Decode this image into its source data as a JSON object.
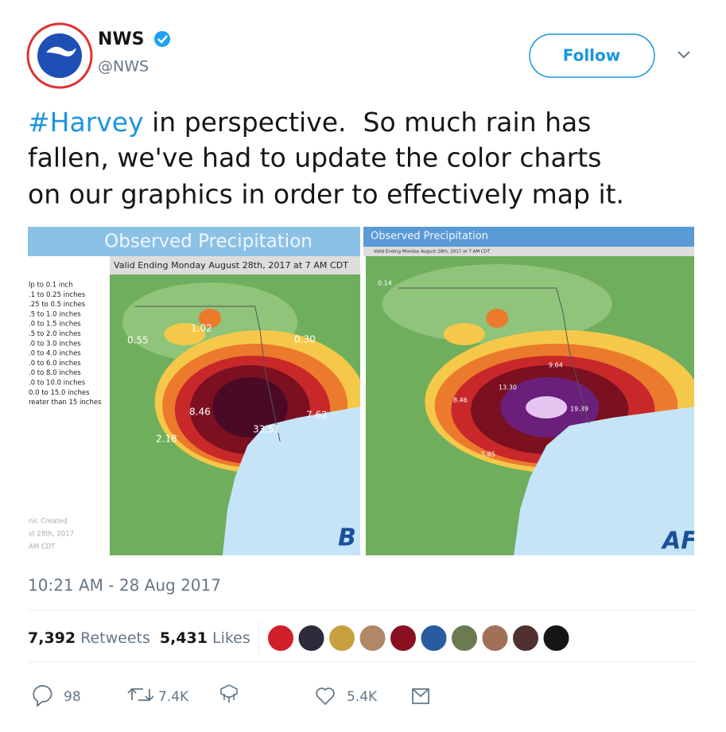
{
  "header": {
    "name": "NWS",
    "handle": "@NWS",
    "follow": "Follow"
  },
  "tweet": {
    "hashtag": "#Harvey",
    "lines": [
      " in perspective.  So much rain has",
      "fallen, we've had to update the color charts",
      "on our graphics in order to effectively map it."
    ]
  },
  "images": [
    {
      "title": "Observed Precipitation",
      "subtitle": "Valid Ending Monday August 28th, 2017 at 7 AM CDT",
      "legend": [
        "lp to 0.1 inch",
        ".1 to 0.25 inches",
        ".25 to 0.5 inches",
        ".5 to 1.0 inches",
        ".0 to 1.5 inches",
        ".5 to 2.0 inches",
        ".0 to 3.0 inches",
        ".0 to 4.0 inches",
        ".0 to 6.0 inches",
        ".0 to 8.0 inches",
        ".0 to 10.0 inches",
        "0.0 to 15.0 inches",
        "reater than 15 inches"
      ],
      "labels": [
        "8.46",
        "33.51",
        "7.62",
        "2.18",
        "1.02",
        "0.55",
        "0.30"
      ],
      "footer": [
        "nic Created",
        "st 28th, 2017",
        "AM CDT"
      ],
      "tag": "B"
    },
    {
      "title": "Observed Precipitation",
      "subtitle": "Valid Ending Monday August 28th, 2017 at 7 AM CDT",
      "labels": [
        "13.30",
        "9.64",
        "8.46",
        "19.39",
        "0.14",
        "5.85"
      ],
      "tag": "AF"
    }
  ],
  "timestamp": "10:21 AM - 28 Aug 2017",
  "stats": {
    "retweets": {
      "count": "7,392",
      "label": "Retweets"
    },
    "likes": {
      "count": "5,431",
      "label": "Likes"
    }
  },
  "actions": {
    "replies": "98",
    "retweets": "7.4K",
    "likes": "5.4K"
  }
}
